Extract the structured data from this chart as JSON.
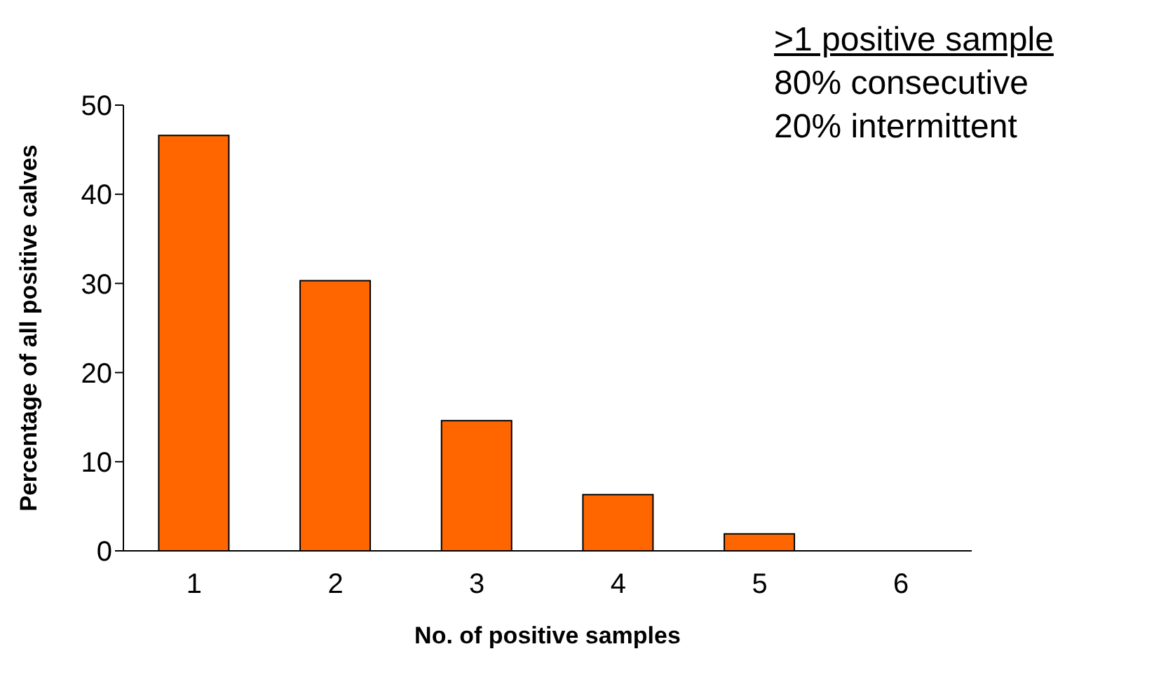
{
  "chart_data": {
    "type": "bar",
    "xlabel": "No. of positive samples",
    "ylabel": "Percentage of all positive calves",
    "categories": [
      "1",
      "2",
      "3",
      "4",
      "5",
      "6"
    ],
    "values": [
      46.6,
      30.3,
      14.6,
      6.3,
      1.9,
      0
    ],
    "color": "#ff6600",
    "ylim": [
      0,
      50
    ],
    "yticks": [
      0,
      10,
      20,
      30,
      40,
      50
    ],
    "grid": false,
    "annotations": [
      ">1 positive sample",
      "80% consecutive",
      "20% intermittent"
    ]
  }
}
